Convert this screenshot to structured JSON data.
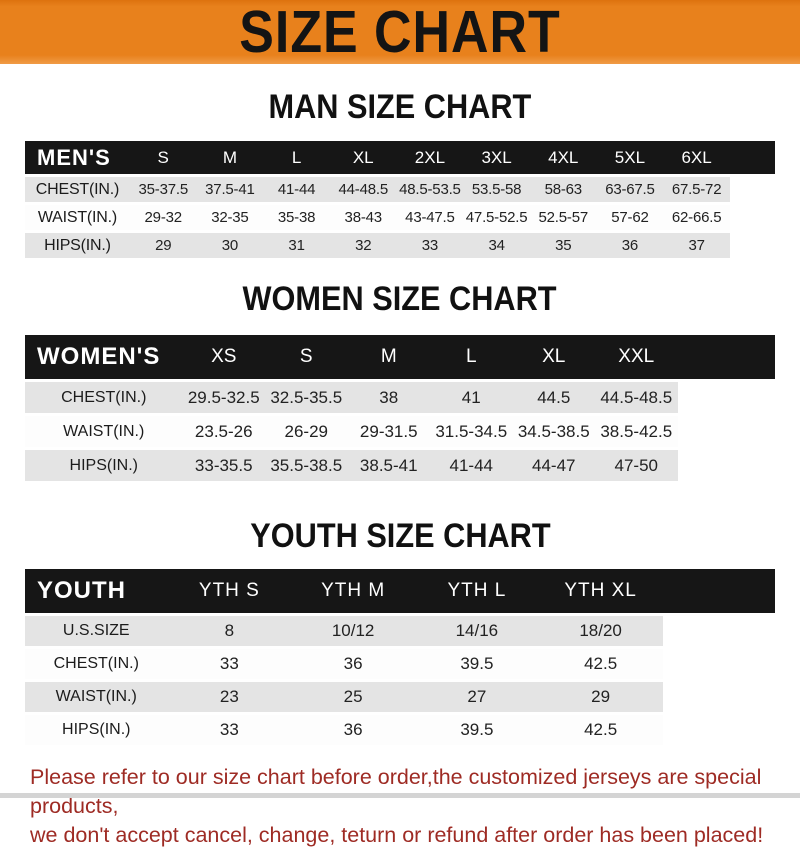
{
  "banner": {
    "title": "SIZE CHART"
  },
  "colors": {
    "banner_orange": "#E8811C",
    "table_header_black": "#161616",
    "row_gray": "#E4E4E4",
    "footer_red": "#9E2B24"
  },
  "chart_data": [
    {
      "type": "table",
      "title": "MAN SIZE CHART",
      "corner_label": "MEN'S",
      "columns": [
        "S",
        "M",
        "L",
        "XL",
        "2XL",
        "3XL",
        "4XL",
        "5XL",
        "6XL"
      ],
      "rows": [
        {
          "label": "CHEST(IN.)",
          "values": [
            "35-37.5",
            "37.5-41",
            "41-44",
            "44-48.5",
            "48.5-53.5",
            "53.5-58",
            "58-63",
            "63-67.5",
            "67.5-72"
          ]
        },
        {
          "label": "WAIST(IN.)",
          "values": [
            "29-32",
            "32-35",
            "35-38",
            "38-43",
            "43-47.5",
            "47.5-52.5",
            "52.5-57",
            "57-62",
            "62-66.5"
          ]
        },
        {
          "label": "HIPS(IN.)",
          "values": [
            "29",
            "30",
            "31",
            "32",
            "33",
            "34",
            "35",
            "36",
            "37"
          ]
        }
      ]
    },
    {
      "type": "table",
      "title": "WOMEN SIZE CHART",
      "corner_label": "WOMEN'S",
      "columns": [
        "XS",
        "S",
        "M",
        "L",
        "XL",
        "XXL"
      ],
      "rows": [
        {
          "label": "CHEST(IN.)",
          "values": [
            "29.5-32.5",
            "32.5-35.5",
            "38",
            "41",
            "44.5",
            "44.5-48.5"
          ]
        },
        {
          "label": "WAIST(IN.)",
          "values": [
            "23.5-26",
            "26-29",
            "29-31.5",
            "31.5-34.5",
            "34.5-38.5",
            "38.5-42.5"
          ]
        },
        {
          "label": "HIPS(IN.)",
          "values": [
            "33-35.5",
            "35.5-38.5",
            "38.5-41",
            "41-44",
            "44-47",
            "47-50"
          ]
        }
      ]
    },
    {
      "type": "table",
      "title": "YOUTH SIZE CHART",
      "corner_label": "YOUTH",
      "columns": [
        "YTH S",
        "YTH M",
        "YTH L",
        "YTH XL"
      ],
      "rows": [
        {
          "label": "U.S.SIZE",
          "values": [
            "8",
            "10/12",
            "14/16",
            "18/20"
          ]
        },
        {
          "label": "CHEST(IN.)",
          "values": [
            "33",
            "36",
            "39.5",
            "42.5"
          ]
        },
        {
          "label": "WAIST(IN.)",
          "values": [
            "23",
            "25",
            "27",
            "29"
          ]
        },
        {
          "label": "HIPS(IN.)",
          "values": [
            "33",
            "36",
            "39.5",
            "42.5"
          ]
        }
      ]
    }
  ],
  "footer": {
    "line1": "Please refer to our size chart before order,the customized jerseys are special products,",
    "line2": "we don't accept cancel, change, teturn or refund after order has been placed!"
  }
}
